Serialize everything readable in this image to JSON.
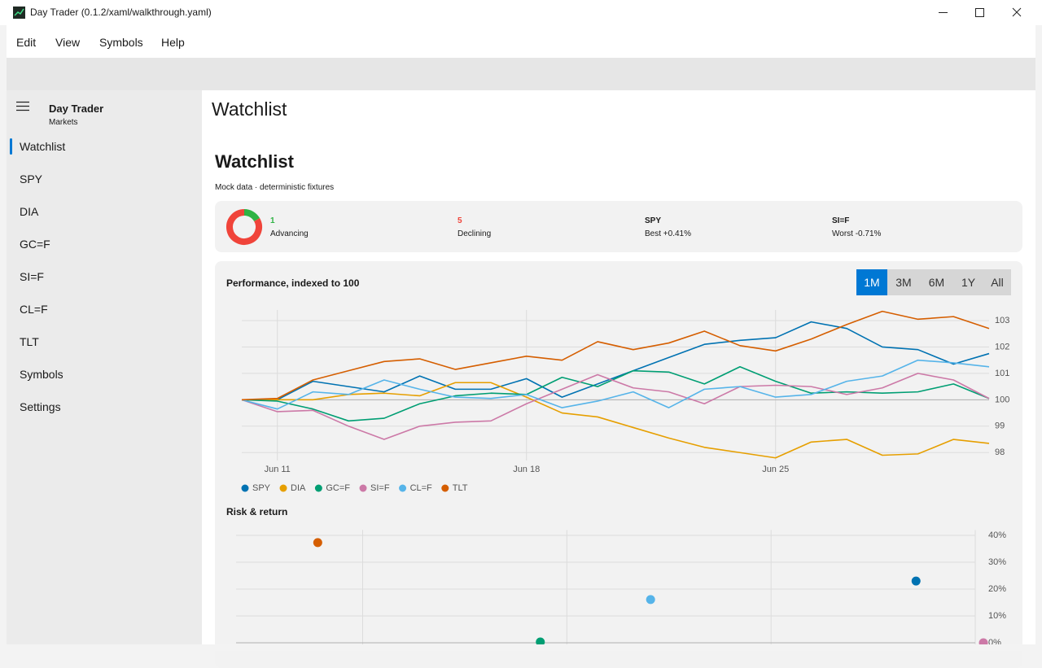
{
  "window": {
    "title": "Day Trader (0.1.2/xaml/walkthrough.yaml)"
  },
  "menu": [
    "Edit",
    "View",
    "Symbols",
    "Help"
  ],
  "sidebar": {
    "app": "Day Trader",
    "subtitle": "Markets",
    "items": [
      "Watchlist",
      "SPY",
      "DIA",
      "GC=F",
      "SI=F",
      "CL=F",
      "TLT",
      "Symbols",
      "Settings"
    ]
  },
  "page": {
    "header": "Watchlist",
    "title": "Watchlist",
    "subtitle": "Mock data · deterministic fixtures"
  },
  "summary": {
    "advancing": {
      "value": 1,
      "label": "Advancing",
      "color": "#2fb344"
    },
    "declining": {
      "value": 5,
      "label": "Declining",
      "color": "#f0443a"
    },
    "best": {
      "symbol": "SPY",
      "text": "Best +0.41%"
    },
    "worst": {
      "symbol": "SI=F",
      "text": "Worst -0.71%"
    }
  },
  "ranges": {
    "options": [
      "1M",
      "3M",
      "6M",
      "1Y",
      "All"
    ],
    "selected": "1M"
  },
  "chart_data": [
    {
      "type": "line",
      "title": "Performance, indexed to 100",
      "categories": [
        null,
        "Jun 11",
        null,
        null,
        null,
        null,
        null,
        null,
        "Jun 18",
        null,
        null,
        null,
        null,
        null,
        null,
        "Jun 25",
        null,
        null,
        null,
        null,
        null,
        null
      ],
      "ylim": [
        97.7,
        103.4
      ],
      "yticks": [
        98,
        99,
        100,
        101,
        102,
        103
      ],
      "baseline": 100,
      "grid": true,
      "series": [
        {
          "name": "SPY",
          "color": "#0072b2",
          "values": [
            100,
            100,
            100.7,
            100.5,
            100.3,
            100.9,
            100.4,
            100.4,
            100.8,
            100.1,
            100.6,
            101.1,
            101.6,
            102.1,
            102.25,
            102.35,
            102.95,
            102.7,
            102.0,
            101.9,
            101.35,
            101.75
          ]
        },
        {
          "name": "DIA",
          "color": "#e69f00",
          "values": [
            100,
            100,
            100,
            100.2,
            100.25,
            100.15,
            100.65,
            100.65,
            100.1,
            99.5,
            99.35,
            98.95,
            98.55,
            98.2,
            98.0,
            97.8,
            98.4,
            98.5,
            97.9,
            97.95,
            98.5,
            98.35
          ]
        },
        {
          "name": "GC=F",
          "color": "#009e73",
          "values": [
            100,
            99.95,
            99.65,
            99.2,
            99.3,
            99.85,
            100.15,
            100.25,
            100.2,
            100.85,
            100.5,
            101.1,
            101.05,
            100.6,
            101.25,
            100.7,
            100.25,
            100.3,
            100.25,
            100.3,
            100.6,
            100.05
          ]
        },
        {
          "name": "SI=F",
          "color": "#cc79a7",
          "values": [
            100,
            99.55,
            99.6,
            99.0,
            98.5,
            99.0,
            99.15,
            99.2,
            99.85,
            100.4,
            100.95,
            100.45,
            100.3,
            99.85,
            100.5,
            100.55,
            100.5,
            100.2,
            100.45,
            101.0,
            100.75,
            100.05
          ]
        },
        {
          "name": "CL=F",
          "color": "#56b4e9",
          "values": [
            100,
            99.65,
            100.3,
            100.2,
            100.75,
            100.4,
            100.1,
            100.05,
            100.2,
            99.7,
            99.95,
            100.3,
            99.7,
            100.4,
            100.5,
            100.1,
            100.2,
            100.7,
            100.9,
            101.5,
            101.4,
            101.25
          ]
        },
        {
          "name": "TLT",
          "color": "#d55e00",
          "values": [
            100,
            100.05,
            100.75,
            101.1,
            101.45,
            101.55,
            101.15,
            101.4,
            101.65,
            101.5,
            102.2,
            101.9,
            102.15,
            102.6,
            102.05,
            101.85,
            102.3,
            102.85,
            103.35,
            103.05,
            103.15,
            102.7
          ]
        }
      ]
    },
    {
      "type": "scatter",
      "title": "Risk & return",
      "x": [
        3.9,
        9.35,
        12.05,
        18.55,
        20.2
      ],
      "values": [
        37.3,
        0.3,
        16.1,
        23,
        0
      ],
      "colors": [
        "#d55e00",
        "#009e73",
        "#56b4e9",
        "#0072b2",
        "#cc79a7"
      ],
      "xlim": [
        1.9,
        20
      ],
      "xgrid": [
        5,
        10,
        15,
        20
      ],
      "ylim": [
        0,
        42
      ],
      "yticks": [
        {
          "value": 0,
          "label": "0%"
        },
        {
          "value": 10,
          "label": "10%"
        },
        {
          "value": 20,
          "label": "20%"
        },
        {
          "value": 30,
          "label": "30%"
        },
        {
          "value": 40,
          "label": "40%"
        }
      ],
      "baseline": 0
    }
  ]
}
